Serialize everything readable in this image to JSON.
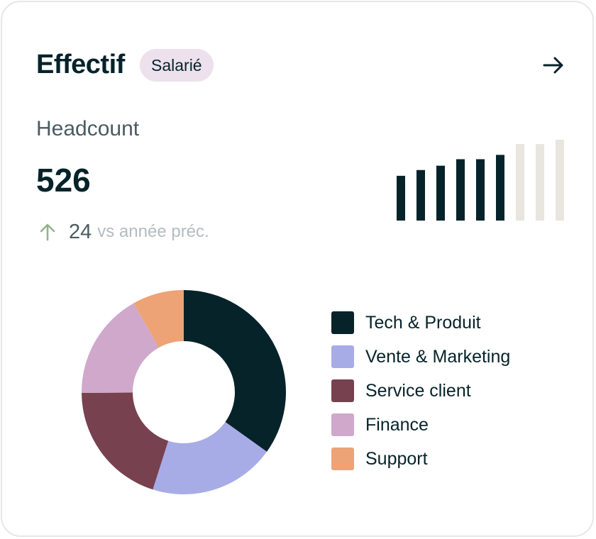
{
  "header": {
    "title": "Effectif",
    "badge": "Salarié",
    "arrow_icon": "arrow-right-icon"
  },
  "kpi": {
    "label": "Headcount",
    "value": "526",
    "delta_icon": "arrow-up-icon",
    "delta_value": "24",
    "delta_text": "vs année préc."
  },
  "sparkline": {
    "relative_values": [
      0.62,
      0.7,
      0.76,
      0.85,
      0.85,
      0.91,
      1.06,
      1.06,
      1.12
    ],
    "colors": [
      "#06232a",
      "#06232a",
      "#06232a",
      "#06232a",
      "#06232a",
      "#06232a",
      "#e9e5df",
      "#e9e5df",
      "#e9e5df"
    ]
  },
  "breakdown": {
    "segments": [
      {
        "label": "Tech & Produit",
        "share": 0.349,
        "color": "#06232a"
      },
      {
        "label": "Vente & Marketing",
        "share": 0.2,
        "color": "#a8ace6"
      },
      {
        "label": "Service client",
        "share": 0.2,
        "color": "#78414f"
      },
      {
        "label": "Finance",
        "share": 0.1695,
        "color": "#cfa8cb"
      },
      {
        "label": "Support",
        "share": 0.0815,
        "color": "#eda376"
      }
    ]
  },
  "colors": {
    "primary": "#06232a",
    "badge_bg": "#ece1ec",
    "positive": "#93b38b",
    "muted": "#b4bcbf"
  }
}
